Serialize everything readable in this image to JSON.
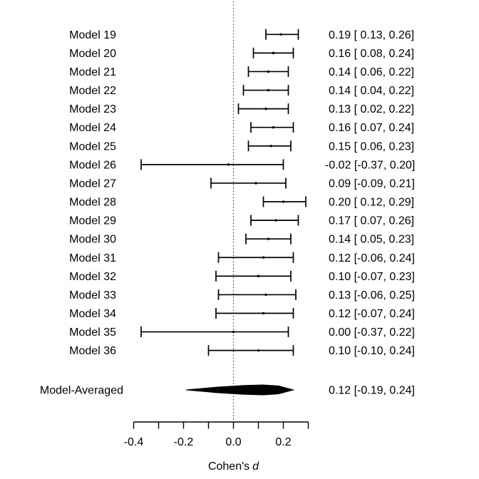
{
  "chart_data": {
    "type": "forest",
    "title": "",
    "xlabel_prefix": "Cohen's",
    "xlabel_italic": "d",
    "xlim": [
      -0.4,
      0.3
    ],
    "x_ticks": [
      -0.4,
      -0.3,
      -0.2,
      -0.1,
      0.0,
      0.1,
      0.2,
      0.3
    ],
    "x_tick_labels": [
      {
        "value": -0.4,
        "label": "-0.4"
      },
      {
        "value": -0.2,
        "label": "-0.2"
      },
      {
        "value": 0.0,
        "label": "0.0"
      },
      {
        "value": 0.2,
        "label": "0.2"
      }
    ],
    "zero_reference": 0.0,
    "grid": false,
    "legend": false,
    "models": [
      {
        "label": "Model 19",
        "est": 0.19,
        "lower": 0.13,
        "upper": 0.26,
        "annotation": "0.19 [ 0.13, 0.26]"
      },
      {
        "label": "Model 20",
        "est": 0.16,
        "lower": 0.08,
        "upper": 0.24,
        "annotation": "0.16 [ 0.08, 0.24]"
      },
      {
        "label": "Model 21",
        "est": 0.14,
        "lower": 0.06,
        "upper": 0.22,
        "annotation": "0.14 [ 0.06, 0.22]"
      },
      {
        "label": "Model 22",
        "est": 0.14,
        "lower": 0.04,
        "upper": 0.22,
        "annotation": "0.14 [ 0.04, 0.22]"
      },
      {
        "label": "Model 23",
        "est": 0.13,
        "lower": 0.02,
        "upper": 0.22,
        "annotation": "0.13 [ 0.02, 0.22]"
      },
      {
        "label": "Model 24",
        "est": 0.16,
        "lower": 0.07,
        "upper": 0.24,
        "annotation": "0.16 [ 0.07, 0.24]"
      },
      {
        "label": "Model 25",
        "est": 0.15,
        "lower": 0.06,
        "upper": 0.23,
        "annotation": "0.15 [ 0.06, 0.23]"
      },
      {
        "label": "Model 26",
        "est": -0.02,
        "lower": -0.37,
        "upper": 0.2,
        "annotation": "-0.02 [-0.37, 0.20]"
      },
      {
        "label": "Model 27",
        "est": 0.09,
        "lower": -0.09,
        "upper": 0.21,
        "annotation": "0.09 [-0.09, 0.21]"
      },
      {
        "label": "Model 28",
        "est": 0.2,
        "lower": 0.12,
        "upper": 0.29,
        "annotation": "0.20 [ 0.12, 0.29]"
      },
      {
        "label": "Model 29",
        "est": 0.17,
        "lower": 0.07,
        "upper": 0.26,
        "annotation": "0.17 [ 0.07, 0.26]"
      },
      {
        "label": "Model 30",
        "est": 0.14,
        "lower": 0.05,
        "upper": 0.23,
        "annotation": "0.14 [ 0.05, 0.23]"
      },
      {
        "label": "Model 31",
        "est": 0.12,
        "lower": -0.06,
        "upper": 0.24,
        "annotation": "0.12 [-0.06, 0.24]"
      },
      {
        "label": "Model 32",
        "est": 0.1,
        "lower": -0.07,
        "upper": 0.23,
        "annotation": "0.10 [-0.07, 0.23]"
      },
      {
        "label": "Model 33",
        "est": 0.13,
        "lower": -0.06,
        "upper": 0.25,
        "annotation": "0.13 [-0.06, 0.25]"
      },
      {
        "label": "Model 34",
        "est": 0.12,
        "lower": -0.07,
        "upper": 0.24,
        "annotation": "0.12 [-0.07, 0.24]"
      },
      {
        "label": "Model 35",
        "est": 0.0,
        "lower": -0.37,
        "upper": 0.22,
        "annotation": "0.00 [-0.37, 0.22]"
      },
      {
        "label": "Model 36",
        "est": 0.1,
        "lower": -0.1,
        "upper": 0.24,
        "annotation": "0.10 [-0.10, 0.24]"
      }
    ],
    "summary": {
      "label": "Model-Averaged",
      "est": 0.12,
      "lower": -0.19,
      "upper": 0.24,
      "annotation": "0.12 [-0.19, 0.24]"
    }
  },
  "colors": {
    "background": "#ffffff",
    "line": "#000000",
    "text": "#000000",
    "dotted_line": "#3c3c3c",
    "diamond": "#000000"
  }
}
